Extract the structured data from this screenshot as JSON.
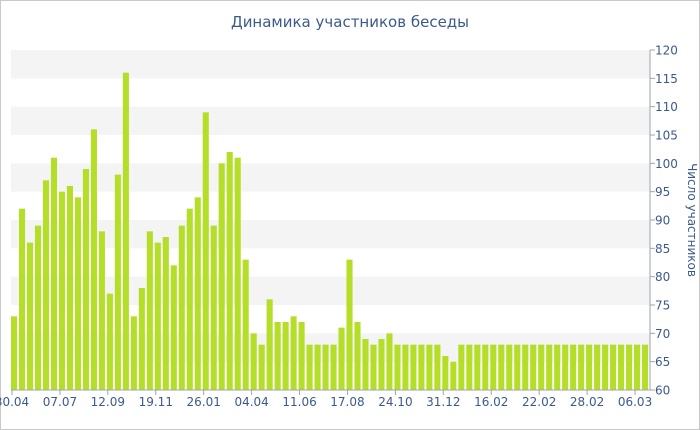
{
  "chart_data": {
    "type": "bar",
    "title": "Динамика участников беседы",
    "ylabel": "Число участников",
    "xlabel": "",
    "ylim": [
      60,
      120
    ],
    "yticks": [
      60,
      65,
      70,
      75,
      80,
      85,
      90,
      95,
      100,
      105,
      110,
      115,
      120
    ],
    "xtick_labels": [
      {
        "index": 0,
        "label": "30.04"
      },
      {
        "index": 6,
        "label": "07.07"
      },
      {
        "index": 12,
        "label": "12.09"
      },
      {
        "index": 18,
        "label": "19.11"
      },
      {
        "index": 24,
        "label": "26.01"
      },
      {
        "index": 30,
        "label": "04.04"
      },
      {
        "index": 36,
        "label": "11.06"
      },
      {
        "index": 42,
        "label": "17.08"
      },
      {
        "index": 48,
        "label": "24.10"
      },
      {
        "index": 54,
        "label": "31.12"
      },
      {
        "index": 60,
        "label": "16.02"
      },
      {
        "index": 66,
        "label": "22.02"
      },
      {
        "index": 72,
        "label": "28.02"
      },
      {
        "index": 78,
        "label": "06.03"
      }
    ],
    "values": [
      73,
      92,
      86,
      89,
      97,
      101,
      95,
      96,
      94,
      99,
      106,
      88,
      77,
      98,
      116,
      73,
      78,
      88,
      86,
      87,
      82,
      89,
      92,
      94,
      109,
      89,
      100,
      102,
      101,
      83,
      70,
      68,
      76,
      72,
      72,
      73,
      72,
      68,
      68,
      68,
      68,
      71,
      83,
      72,
      69,
      68,
      69,
      70,
      68,
      68,
      68,
      68,
      68,
      68,
      66,
      65,
      68,
      68,
      68,
      68,
      68,
      68,
      68,
      68,
      68,
      68,
      68,
      68,
      68,
      68,
      68,
      68,
      68,
      68,
      68,
      68,
      68,
      68,
      68,
      68
    ],
    "bar_color": "#b5de28",
    "band_color": "#f4f4f4",
    "text_color": "#3b5a8c",
    "grid": true,
    "legend": "none"
  }
}
